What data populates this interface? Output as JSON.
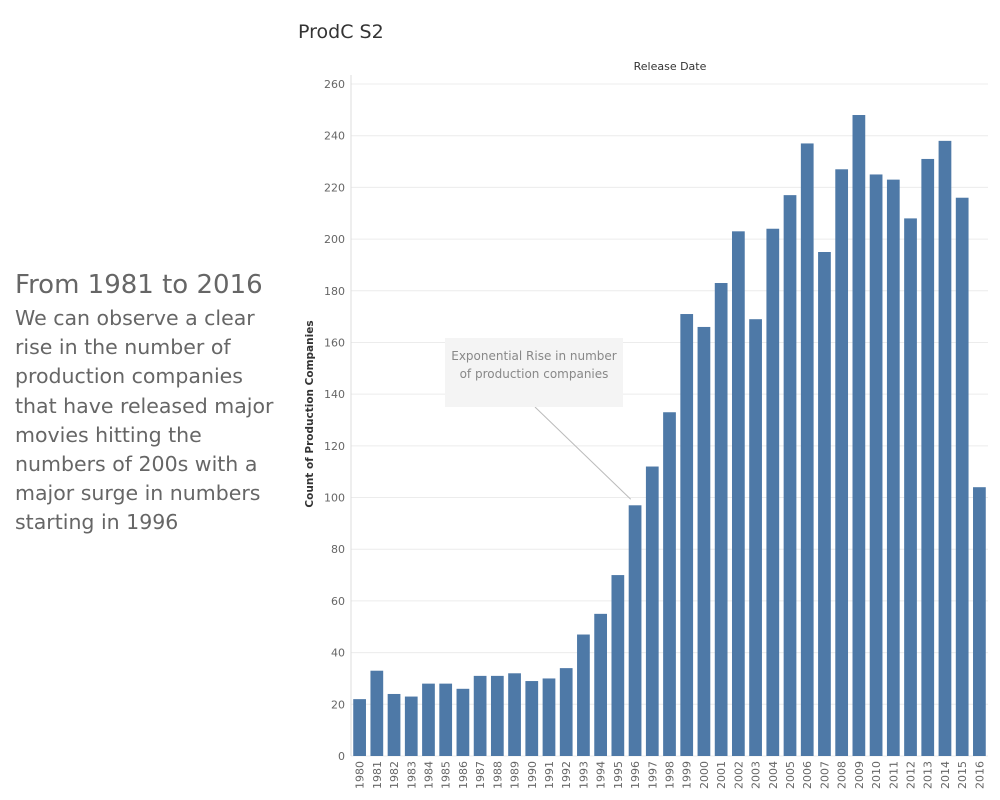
{
  "story": {
    "heading": "From 1981 to 2016",
    "body": "We can observe a clear rise in the number of production companies that have released major movies hitting the numbers of 200s with a major surge in numbers starting in 1996"
  },
  "sheet_title": "ProdC S2",
  "annotation": {
    "text": "Exponential Rise in number of production companies",
    "target_category": "1996"
  },
  "colors": {
    "bar": "#4e79a7",
    "gridline": "#ececec"
  },
  "chart_data": {
    "type": "bar",
    "title": "ProdC S2",
    "xlabel": "Release Date",
    "ylabel": "Count of Production Companies",
    "ylim": [
      0,
      260
    ],
    "yticks": [
      0,
      20,
      40,
      60,
      80,
      100,
      120,
      140,
      160,
      180,
      200,
      220,
      240,
      260
    ],
    "grid": true,
    "categories": [
      "1980",
      "1981",
      "1982",
      "1983",
      "1984",
      "1985",
      "1986",
      "1987",
      "1988",
      "1989",
      "1990",
      "1991",
      "1992",
      "1993",
      "1994",
      "1995",
      "1996",
      "1997",
      "1998",
      "1999",
      "2000",
      "2001",
      "2002",
      "2003",
      "2004",
      "2005",
      "2006",
      "2007",
      "2008",
      "2009",
      "2010",
      "2011",
      "2012",
      "2013",
      "2014",
      "2015",
      "2016"
    ],
    "values": [
      22,
      33,
      24,
      23,
      28,
      28,
      26,
      31,
      31,
      32,
      29,
      30,
      34,
      47,
      55,
      70,
      97,
      112,
      133,
      171,
      166,
      183,
      203,
      169,
      204,
      217,
      237,
      195,
      227,
      248,
      225,
      223,
      208,
      231,
      238,
      216,
      104
    ]
  }
}
